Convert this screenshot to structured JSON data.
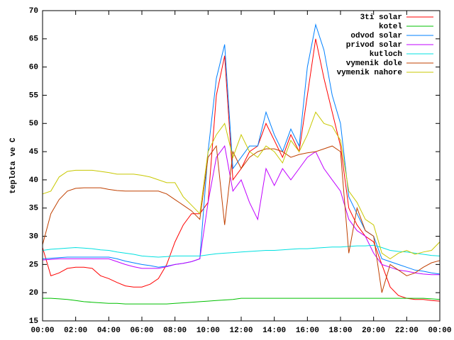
{
  "chart_data": {
    "type": "line",
    "y_label": "teplota ve C",
    "legend": "top-right",
    "xlim": [
      0,
      24
    ],
    "xticks": [
      {
        "value": 0,
        "label": "00:00"
      },
      {
        "value": 2,
        "label": "02:00"
      },
      {
        "value": 4,
        "label": "04:00"
      },
      {
        "value": 6,
        "label": "06:00"
      },
      {
        "value": 8,
        "label": "08:00"
      },
      {
        "value": 10,
        "label": "10:00"
      },
      {
        "value": 12,
        "label": "12:00"
      },
      {
        "value": 14,
        "label": "14:00"
      },
      {
        "value": 16,
        "label": "16:00"
      },
      {
        "value": 18,
        "label": "18:00"
      },
      {
        "value": 20,
        "label": "20:00"
      },
      {
        "value": 22,
        "label": "22:00"
      },
      {
        "value": 24,
        "label": "00:00"
      }
    ],
    "ylim": [
      15,
      70
    ],
    "yticks": [
      15,
      20,
      25,
      30,
      35,
      40,
      45,
      50,
      55,
      60,
      65,
      70
    ],
    "x": [
      0,
      0.5,
      1,
      1.5,
      2,
      2.5,
      3,
      3.5,
      4,
      4.5,
      5,
      5.5,
      6,
      6.5,
      7,
      7.5,
      8,
      8.5,
      9,
      9.5,
      10,
      10.5,
      11,
      11.5,
      12,
      12.5,
      13,
      13.5,
      14,
      14.5,
      15,
      15.5,
      16,
      16.5,
      17,
      17.5,
      18,
      18.5,
      19,
      19.5,
      20,
      20.5,
      21,
      21.5,
      22,
      22.5,
      23,
      23.5,
      24
    ],
    "series": [
      {
        "name": "3ti solar",
        "color": "#ff0000",
        "values": [
          28,
          23,
          23.5,
          24.3,
          24.5,
          24.5,
          24.3,
          23,
          22.5,
          21.8,
          21.2,
          21,
          21,
          21.5,
          22.5,
          25,
          29,
          32,
          34,
          34,
          36,
          55,
          62,
          40,
          42,
          45,
          46,
          50,
          47,
          44,
          48,
          45,
          55,
          65,
          58,
          52,
          46,
          35,
          32,
          30,
          29,
          25,
          21,
          19.5,
          19,
          18.8,
          18.8,
          18.6,
          18.5
        ]
      },
      {
        "name": "kotel",
        "color": "#00c000",
        "values": [
          19,
          19,
          18.9,
          18.8,
          18.6,
          18.4,
          18.3,
          18.2,
          18.1,
          18.1,
          18,
          18,
          18,
          18,
          18,
          18,
          18.1,
          18.2,
          18.3,
          18.4,
          18.5,
          18.6,
          18.7,
          18.8,
          19,
          19,
          19,
          19,
          19,
          19,
          19,
          19,
          19,
          19,
          19,
          19,
          19,
          19,
          19,
          19,
          19,
          19,
          19,
          19,
          19,
          19,
          19,
          18.9,
          18.8
        ]
      },
      {
        "name": "odvod solar",
        "color": "#0080ff",
        "values": [
          26,
          26.1,
          26.2,
          26.3,
          26.3,
          26.3,
          26.3,
          26.3,
          26.3,
          26,
          25.6,
          25.3,
          25,
          24.8,
          24.5,
          24.7,
          25,
          25.2,
          25.5,
          26,
          45,
          58,
          64,
          42,
          44,
          46,
          46,
          52,
          48,
          45,
          49,
          46,
          60,
          67.5,
          63,
          55,
          50,
          37,
          34,
          31,
          30,
          26,
          25.5,
          25,
          24.5,
          24,
          23.8,
          23.5,
          23.3
        ]
      },
      {
        "name": "privod solar",
        "color": "#c000ff",
        "values": [
          25.8,
          25.9,
          26,
          26,
          26,
          26,
          26,
          26,
          26,
          25.5,
          25,
          24.6,
          24.3,
          24.3,
          24.3,
          24.6,
          25,
          25.2,
          25.5,
          26,
          36,
          44,
          46,
          38,
          40,
          36,
          33,
          42,
          39,
          42,
          40,
          42,
          44,
          45,
          42,
          40,
          38,
          33,
          31,
          30,
          27,
          25,
          24.5,
          24,
          23.8,
          23.5,
          23.3,
          23.2,
          23.2
        ]
      },
      {
        "name": "kutloch",
        "color": "#00e0e0",
        "values": [
          27.5,
          27.7,
          27.8,
          27.9,
          28,
          27.9,
          27.8,
          27.6,
          27.5,
          27.2,
          27,
          26.8,
          26.5,
          26.4,
          26.3,
          26.4,
          26.5,
          26.5,
          26.5,
          26.5,
          26.7,
          26.9,
          27,
          27.1,
          27.2,
          27.3,
          27.4,
          27.5,
          27.5,
          27.6,
          27.7,
          27.8,
          27.8,
          27.9,
          28,
          28.1,
          28.1,
          28.2,
          28.3,
          28.3,
          28.4,
          28,
          27.5,
          27.3,
          27.2,
          27,
          26.8,
          26.6,
          26.5
        ]
      },
      {
        "name": "vymenik dole",
        "color": "#c04000",
        "values": [
          28.5,
          34,
          36.5,
          38,
          38.5,
          38.6,
          38.6,
          38.6,
          38.3,
          38.1,
          38,
          38,
          38,
          38,
          38,
          37.5,
          36.5,
          35.5,
          34.5,
          33,
          44,
          46,
          32,
          45,
          42,
          44,
          45,
          45.5,
          45.5,
          45,
          44,
          44.5,
          44.8,
          45,
          45.5,
          46,
          45,
          27,
          35,
          31,
          30,
          20,
          25,
          24,
          23,
          23.5,
          24.5,
          25.3,
          25.7
        ]
      },
      {
        "name": "vymenik nahore",
        "color": "#c8c800",
        "values": [
          37.5,
          38,
          40.5,
          41.5,
          41.7,
          41.7,
          41.7,
          41.5,
          41.3,
          41,
          41,
          41,
          40.8,
          40.5,
          40,
          39.5,
          39.5,
          37,
          35.5,
          34,
          45,
          48,
          50,
          44,
          48,
          45,
          44,
          46,
          45,
          43,
          47,
          45,
          48,
          52,
          50,
          49.5,
          47,
          38,
          36,
          33,
          32,
          27,
          26,
          27,
          27.5,
          26.8,
          27.2,
          27.5,
          29
        ]
      }
    ]
  }
}
